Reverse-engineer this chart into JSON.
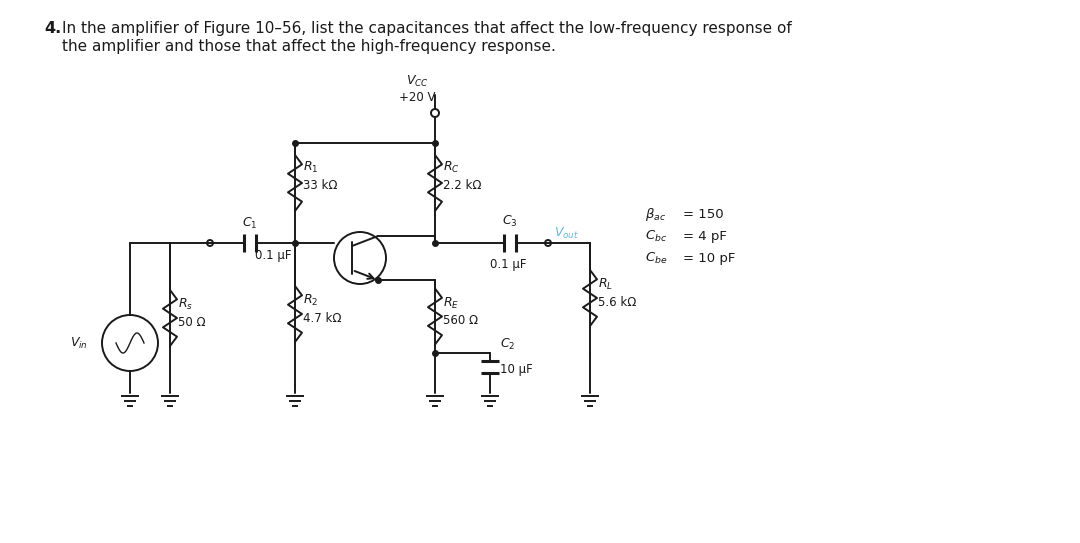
{
  "bg_color": "#ffffff",
  "circuit_color": "#1a1a1a",
  "vout_color": "#5bb8e8",
  "RC_val": "2.2 kΩ",
  "R1_val": "33 kΩ",
  "R2_val": "4.7 kΩ",
  "RE_val": "560 Ω",
  "Rs_val": "50 Ω",
  "RL_val": "5.6 kΩ",
  "C1_val": "0.1 μF",
  "C2_val": "10 μF",
  "C3_val": "0.1 μF",
  "question_num": "4.",
  "question_text1": "In the amplifier of Figure 10–56, list the capacitances that affect the low-frequency response of",
  "question_text2": "the amplifier and those that affect the high-frequency response.",
  "vcc_text": "+20 V",
  "beta_text": "β",
  "beta_val": "= 150",
  "cbc_label": "C",
  "cbc_sub": "bc",
  "cbc_val": "= 4 pF",
  "cbe_label": "C",
  "cbe_sub": "be",
  "cbe_val": "= 10 pF"
}
